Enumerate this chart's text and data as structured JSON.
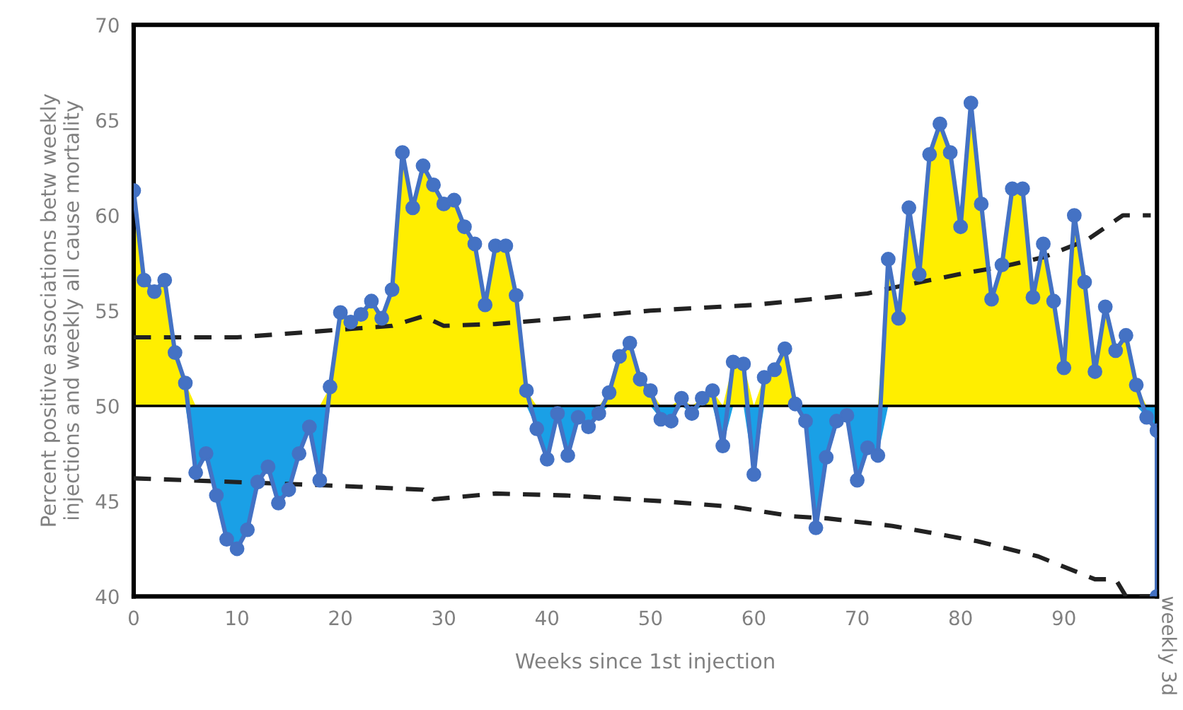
{
  "chart_data": {
    "type": "line",
    "xlabel": "Weeks since 1st injection",
    "ylabel": "Percent positive associations betw weekly\ninjections and weekly all cause mortality",
    "annotations": [
      "weekly 3d"
    ],
    "xlim": [
      0,
      99
    ],
    "xticks": [
      0,
      10,
      20,
      30,
      40,
      50,
      60,
      70,
      80,
      90
    ],
    "ylim": [
      40,
      70
    ],
    "yticks": [
      40,
      45,
      50,
      55,
      60,
      65,
      70
    ],
    "grid": false,
    "legend": false,
    "ref_lines": [
      {
        "axis": "y",
        "value": 50,
        "color": "#000000",
        "line_style": "solid"
      }
    ],
    "series": [
      {
        "color": "#4472c4",
        "lower": [
          50,
          50,
          50,
          50,
          50,
          50,
          50,
          50,
          50,
          50,
          50,
          50,
          50,
          50,
          50,
          50,
          50,
          50,
          50,
          50,
          50,
          50,
          50,
          50,
          50,
          50,
          50,
          50,
          50,
          50,
          50,
          50,
          50,
          50,
          50,
          50,
          50,
          50,
          50,
          50,
          50,
          50,
          50,
          50,
          50,
          50,
          50,
          50,
          50,
          50,
          50,
          50,
          50,
          50,
          50,
          50,
          50,
          50,
          50,
          50,
          50,
          50,
          50,
          50,
          50,
          50,
          50,
          50,
          50,
          50,
          50,
          50,
          50,
          50,
          50,
          50,
          50,
          50,
          50,
          50,
          50,
          50,
          50,
          50,
          50,
          50,
          50,
          50,
          50,
          50,
          50,
          50,
          50,
          50,
          50,
          50,
          50,
          50,
          50,
          50,
          50
        ],
        "upper": [
          61.3,
          56.6,
          56.0,
          56.6,
          52.8,
          51.2,
          50,
          50,
          50,
          50,
          50,
          50,
          50,
          50,
          50,
          50,
          50,
          50,
          50,
          51.0,
          54.9,
          54.4,
          54.8,
          55.5,
          54.6,
          56.1,
          63.3,
          60.4,
          62.6,
          61.6,
          60.6,
          60.8,
          59.4,
          58.5,
          55.3,
          58.4,
          58.4,
          55.8,
          50.8,
          50,
          50,
          50,
          50,
          50,
          50,
          50,
          50.7,
          52.6,
          53.3,
          51.4,
          50.8,
          50,
          50,
          50.4,
          50,
          50.4,
          50.8,
          50,
          52.3,
          52.2,
          50,
          51.5,
          51.9,
          53.0,
          50.1,
          50,
          50,
          50,
          50,
          50,
          50,
          50,
          50,
          57.7,
          54.6,
          60.4,
          56.9,
          63.2,
          64.8,
          63.3,
          59.4,
          65.9,
          60.6,
          55.6,
          57.4,
          61.4,
          61.4,
          55.7,
          58.5,
          55.5,
          52.0,
          60.0,
          56.5,
          51.8,
          55.2,
          52.9,
          53.7,
          51.1,
          50,
          50,
          50
        ],
        "colors": [
          "#ffee00",
          "#ffee00",
          "#ffee00",
          "#ffee00",
          "#ffee00",
          "#ffee00",
          "#ffee00",
          "#ffee00",
          "#ffee00",
          "#ffee00",
          "#ffee00",
          "#ffee00",
          "#ffee00",
          "#ffee00",
          "#ffee00",
          "#ffee00",
          "#ffee00",
          "#ffee00",
          "#ffee00",
          "#ffee00",
          "#ffee00",
          "#ffee00",
          "#ffee00",
          "#ffee00",
          "#ffee00",
          "#ffee00",
          "#ffee00",
          "#ffee00",
          "#ffee00",
          "#ffee00",
          "#ffee00",
          "#ffee00",
          "#ffee00",
          "#ffee00",
          "#ffee00",
          "#ffee00",
          "#ffee00",
          "#ffee00",
          "#ffee00",
          "#ffee00",
          "#ffee00",
          "#ffee00",
          "#ffee00",
          "#ffee00",
          "#ffee00",
          "#ffee00",
          "#ffee00",
          "#ffee00",
          "#ffee00",
          "#ffee00",
          "#ffee00",
          "#ffee00",
          "#ffee00",
          "#ffee00",
          "#ffee00",
          "#ffee00",
          "#ffee00",
          "#ffee00",
          "#ffee00",
          "#ffee00",
          "#ffee00",
          "#ffee00",
          "#ffee00",
          "#ffee00",
          "#ffee00",
          "#ffee00",
          "#ffee00",
          "#ffee00",
          "#ffee00",
          "#ffee00",
          "#ffee00",
          "#ffee00",
          "#ffee00",
          "#ffee00",
          "#ffee00",
          "#ffee00",
          "#ffee00",
          "#ffee00",
          "#ffee00",
          "#ffee00",
          "#ffee00",
          "#ffee00",
          "#ffee00",
          "#ffee00",
          "#ffee00",
          "#ffee00",
          "#ffee00",
          "#ffee00",
          "#ffee00",
          "#ffee00",
          "#ffee00",
          "#ffee00",
          "#ffee00",
          "#ffee00",
          "#ffee00",
          "#ffee00",
          "#ffee00",
          "#ffee00",
          "#ffee00",
          "#ffee00",
          "#ffee00"
        ],
        "marker": "circle",
        "line_style": "solid",
        "x": [
          0,
          1,
          2,
          3,
          4,
          5,
          6,
          7,
          8,
          9,
          10,
          11,
          12,
          13,
          14,
          15,
          16,
          17,
          18,
          19,
          20,
          21,
          22,
          23,
          24,
          25,
          26,
          27,
          28,
          29,
          30,
          31,
          32,
          33,
          34,
          35,
          36,
          37,
          38,
          39,
          40,
          41,
          42,
          43,
          44,
          45,
          46,
          47,
          48,
          49,
          50,
          51,
          52,
          53,
          54,
          55,
          56,
          57,
          58,
          59,
          60,
          61,
          62,
          63,
          64,
          65,
          66,
          67,
          68,
          69,
          70,
          71,
          72,
          73,
          74,
          75,
          76,
          77,
          78,
          79,
          80,
          81,
          82,
          83,
          84,
          85,
          86,
          87,
          88,
          89,
          90,
          91,
          92,
          93,
          94,
          95,
          96,
          97,
          98,
          99,
          99
        ],
        "values": [
          61.3,
          56.6,
          56.0,
          56.6,
          52.8,
          51.2,
          46.5,
          47.5,
          45.3,
          43.0,
          42.5,
          43.5,
          46.0,
          46.8,
          44.9,
          45.6,
          47.5,
          48.9,
          46.1,
          51.0,
          54.9,
          54.4,
          54.8,
          55.5,
          54.6,
          56.1,
          63.3,
          60.4,
          62.6,
          61.6,
          60.6,
          60.8,
          59.4,
          58.5,
          55.3,
          58.4,
          58.4,
          55.8,
          50.8,
          48.8,
          47.2,
          49.6,
          47.4,
          49.4,
          48.9,
          49.6,
          50.7,
          52.6,
          53.3,
          51.4,
          50.8,
          49.3,
          49.2,
          50.4,
          49.6,
          50.4,
          50.8,
          47.9,
          52.3,
          52.2,
          46.4,
          51.5,
          51.9,
          53.0,
          50.1,
          49.2,
          43.6,
          47.3,
          49.2,
          49.5,
          46.1,
          47.8,
          47.4,
          57.7,
          54.6,
          60.4,
          56.9,
          63.2,
          64.8,
          63.3,
          59.4,
          65.9,
          60.6,
          55.6,
          57.4,
          61.4,
          61.4,
          55.7,
          58.5,
          55.5,
          52.0,
          60.0,
          56.5,
          51.8,
          55.2,
          52.9,
          53.7,
          51.1,
          49.4,
          48.7,
          40
        ]
      },
      {
        "color": "#1aa0e6",
        "values": [
          null,
          null,
          null,
          null,
          null,
          null,
          null,
          null,
          null,
          null,
          null,
          null,
          null,
          null,
          null,
          null,
          null,
          null,
          null,
          null,
          null,
          null,
          null,
          null,
          null,
          null,
          null,
          null,
          null,
          null,
          null,
          null,
          null,
          null,
          null,
          null,
          null,
          null,
          null,
          null,
          null,
          null,
          null,
          null,
          null,
          null,
          null,
          null,
          null,
          null,
          null,
          null,
          null,
          null,
          null,
          null,
          null,
          null,
          null,
          null,
          null,
          null,
          null,
          null,
          null,
          null,
          null,
          null,
          null,
          null,
          null,
          null,
          null,
          null,
          null,
          null,
          null,
          null,
          null,
          null,
          null,
          null,
          null,
          null,
          null,
          null,
          null,
          null,
          null,
          null,
          null,
          null,
          null,
          null,
          null,
          null,
          null,
          null,
          null,
          null,
          null
        ],
        "x": [
          0,
          1,
          2,
          3,
          4,
          5,
          6,
          7,
          8,
          9,
          10,
          11,
          12,
          13,
          14,
          15,
          16,
          17,
          18,
          19,
          20,
          21,
          22,
          23,
          24,
          25,
          26,
          27,
          28,
          29,
          30,
          31,
          32,
          33,
          34,
          35,
          36,
          37,
          38,
          39,
          40,
          41,
          42,
          43,
          44,
          45,
          46,
          47,
          48,
          49,
          50,
          51,
          52,
          53,
          54,
          55,
          56,
          57,
          58,
          59,
          60,
          61,
          62,
          63,
          64,
          65,
          66,
          67,
          68,
          69,
          70,
          71,
          72,
          73,
          74,
          75,
          76,
          77,
          78,
          79,
          80,
          81,
          82,
          83,
          84,
          85,
          86,
          87,
          88,
          89,
          90,
          91,
          92,
          93,
          94,
          95,
          96,
          97,
          98,
          99,
          99
        ],
        "lower": [
          50,
          50,
          50,
          50,
          50,
          50,
          46.5,
          47.5,
          45.3,
          43.0,
          42.5,
          43.5,
          46.0,
          46.8,
          44.9,
          45.6,
          47.5,
          48.9,
          46.1,
          50,
          50,
          50,
          50,
          50,
          50,
          50,
          50,
          50,
          50,
          50,
          50,
          50,
          50,
          50,
          50,
          50,
          50,
          50,
          50,
          48.8,
          47.2,
          49.6,
          47.4,
          49.4,
          48.9,
          49.6,
          50,
          50,
          50,
          50,
          50,
          49.3,
          49.2,
          50,
          49.6,
          50,
          50,
          47.9,
          50,
          50,
          46.4,
          50,
          50,
          50,
          50,
          49.2,
          43.6,
          47.3,
          49.2,
          49.5,
          46.1,
          47.8,
          47.4,
          50,
          50,
          50,
          50,
          50,
          50,
          50,
          50,
          50,
          50,
          50,
          50,
          50,
          50,
          50,
          50,
          50,
          50,
          50,
          50,
          50,
          50,
          50,
          50,
          50,
          49.4,
          48.7,
          40
        ],
        "upper": [
          50,
          50,
          50,
          50,
          50,
          50,
          50,
          50,
          50,
          50,
          50,
          50,
          50,
          50,
          50,
          50,
          50,
          50,
          50,
          50,
          50,
          50,
          50,
          50,
          50,
          50,
          50,
          50,
          50,
          50,
          50,
          50,
          50,
          50,
          50,
          50,
          50,
          50,
          50,
          50,
          50,
          50,
          50,
          50,
          50,
          50,
          50,
          50,
          50,
          50,
          50,
          50,
          50,
          50,
          50,
          50,
          50,
          50,
          50,
          50,
          50,
          50,
          50,
          50,
          50,
          50,
          50,
          50,
          50,
          50,
          50,
          50,
          50,
          50,
          50,
          50,
          50,
          50,
          50,
          50,
          50,
          50,
          50,
          50,
          50,
          50,
          50,
          50,
          50,
          50,
          50,
          50,
          50,
          50,
          50,
          50,
          50,
          50,
          50,
          50,
          50
        ]
      },
      {
        "type": "line",
        "color": "#222222",
        "marker": "none",
        "line_style": "dashed",
        "x": [
          0,
          10,
          20,
          25,
          28,
          30,
          35,
          41.8,
          50,
          60,
          71,
          73.4,
          80.7,
          84,
          88,
          92.2,
          95.7,
          98.4
        ],
        "values": [
          53.6,
          53.6,
          54.0,
          54.2,
          54.7,
          54.2,
          54.3,
          54.6,
          55.0,
          55.3,
          55.9,
          56.2,
          57.0,
          57.3,
          57.8,
          58.7,
          60.0,
          60.0
        ]
      },
      {
        "type": "line",
        "color": "#222222",
        "marker": "none",
        "line_style": "dashed",
        "x": [
          0,
          5,
          20,
          28,
          29,
          35,
          41.8,
          51,
          58,
          63.8,
          67,
          73.4,
          81.6,
          87.5,
          93,
          95,
          96,
          98.4
        ],
        "values": [
          46.2,
          46.1,
          45.8,
          45.6,
          45.1,
          45.4,
          45.3,
          45.0,
          44.7,
          44.2,
          44.1,
          43.7,
          42.9,
          42.1,
          40.9,
          40.9,
          40.0,
          40.0
        ]
      }
    ]
  }
}
